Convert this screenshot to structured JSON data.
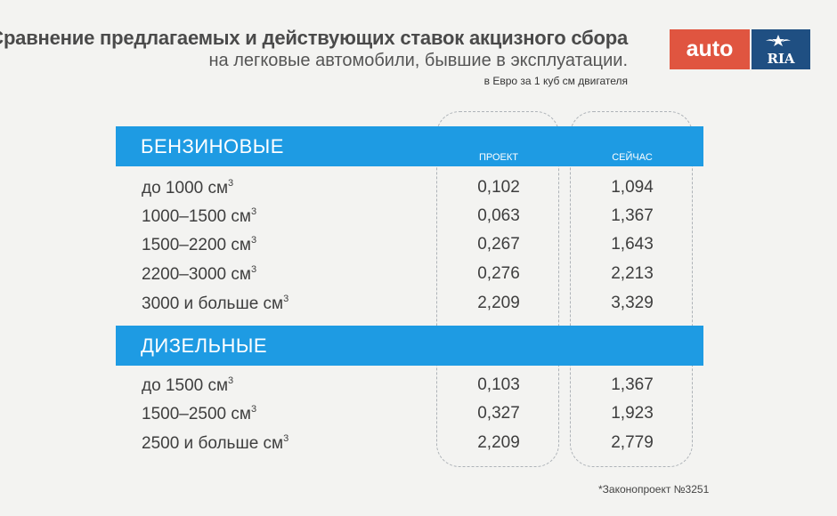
{
  "header": {
    "title": "Сравнение предлагаемых и действующих ставок акцизного сбора",
    "subtitle": "на легковые автомобили, бывшие в эксплуатации.",
    "unit_note": "в Евро за 1 куб см двигателя"
  },
  "logo": {
    "left_text": "auto",
    "right_text": "RIA"
  },
  "columns": {
    "project": "ПРОЕКТ",
    "now": "СЕЙЧАС"
  },
  "sections": [
    {
      "title": "БЕНЗИНОВЫЕ",
      "rows": [
        {
          "label": "до 1000 см",
          "sup": "3",
          "project": "0,102",
          "now": "1,094"
        },
        {
          "label": "1000–1500 см",
          "sup": "3",
          "project": "0,063",
          "now": "1,367"
        },
        {
          "label": "1500–2200 см",
          "sup": "3",
          "project": "0,267",
          "now": "1,643"
        },
        {
          "label": "2200–3000 см",
          "sup": "3",
          "project": "0,276",
          "now": "2,213"
        },
        {
          "label": "3000 и больше см",
          "sup": "3",
          "project": "2,209",
          "now": "3,329"
        }
      ]
    },
    {
      "title": "ДИЗЕЛЬНЫЕ",
      "rows": [
        {
          "label": "до 1500 см",
          "sup": "3",
          "project": "0,103",
          "now": "1,367"
        },
        {
          "label": "1500–2500 см",
          "sup": "3",
          "project": "0,327",
          "now": "1,923"
        },
        {
          "label": "2500 и больше см",
          "sup": "3",
          "project": "2,209",
          "now": "2,779"
        }
      ]
    }
  ],
  "footnote": "*Законопроект №3251",
  "colors": {
    "band": "#1e9be3",
    "logo_red": "#e05540",
    "logo_blue": "#1f4f82"
  }
}
